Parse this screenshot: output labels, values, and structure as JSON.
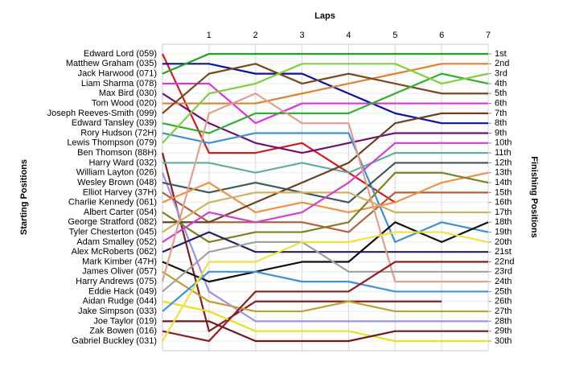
{
  "chart_data": {
    "type": "bump",
    "title": "Laps",
    "ylabel": "Starting Positions",
    "y2label": "Finishing Positions",
    "x": [
      0,
      1,
      2,
      3,
      4,
      5,
      6,
      7
    ],
    "xlim": [
      0,
      7
    ],
    "xticks": [
      1,
      2,
      3,
      4,
      5,
      6,
      7
    ],
    "ylim": [
      1,
      30
    ],
    "yticks": [
      {
        "value": 1,
        "label": "1st"
      },
      {
        "value": 2,
        "label": "2nd"
      },
      {
        "value": 3,
        "label": "3rd"
      },
      {
        "value": 4,
        "label": "4th"
      },
      {
        "value": 5,
        "label": "5th"
      },
      {
        "value": 6,
        "label": "6th"
      },
      {
        "value": 7,
        "label": "7th"
      },
      {
        "value": 8,
        "label": "8th"
      },
      {
        "value": 9,
        "label": "9th"
      },
      {
        "value": 10,
        "label": "10th"
      },
      {
        "value": 11,
        "label": "11th"
      },
      {
        "value": 12,
        "label": "12th"
      },
      {
        "value": 13,
        "label": "13th"
      },
      {
        "value": 14,
        "label": "14th"
      },
      {
        "value": 15,
        "label": "15th"
      },
      {
        "value": 16,
        "label": "16th"
      },
      {
        "value": 17,
        "label": "17th"
      },
      {
        "value": 18,
        "label": "18th"
      },
      {
        "value": 19,
        "label": "19th"
      },
      {
        "value": 20,
        "label": "20th"
      },
      {
        "value": 21,
        "label": "21st"
      },
      {
        "value": 22,
        "label": "22nd"
      },
      {
        "value": 23,
        "label": "23rd"
      },
      {
        "value": 24,
        "label": "24th"
      },
      {
        "value": 25,
        "label": "25th"
      },
      {
        "value": 26,
        "label": "26th"
      },
      {
        "value": 27,
        "label": "27th"
      },
      {
        "value": 28,
        "label": "28th"
      },
      {
        "value": 29,
        "label": "29th"
      },
      {
        "value": 30,
        "label": "30th"
      }
    ],
    "grid": true,
    "series": [
      {
        "name": "Edward Lord (059)",
        "color": "#cc2020",
        "values": [
          1,
          11,
          11,
          10,
          13,
          16,
          null,
          null
        ]
      },
      {
        "name": "Matthew Graham (035)",
        "color": "#1010a0",
        "values": [
          2,
          2,
          3,
          3,
          5,
          7,
          8,
          8
        ]
      },
      {
        "name": "Jack Harwood (071)",
        "color": "#20a020",
        "values": [
          3,
          1,
          1,
          1,
          1,
          1,
          1,
          1
        ]
      },
      {
        "name": "Liam Sharma (078)",
        "color": "#e030e0",
        "values": [
          4,
          4,
          8,
          6,
          6,
          6,
          6,
          6
        ]
      },
      {
        "name": "Max Bird (030)",
        "color": "#701070",
        "values": [
          5,
          8,
          10,
          11,
          10,
          9,
          9,
          9
        ]
      },
      {
        "name": "Tom Wood (020)",
        "color": "#e08030",
        "values": [
          6,
          6,
          6,
          5,
          4,
          3,
          2,
          2
        ]
      },
      {
        "name": "Joseph Reeves-Smith (099)",
        "color": "#7a4a20",
        "values": [
          7,
          3,
          2,
          4,
          3,
          4,
          5,
          5
        ]
      },
      {
        "name": "Edward Tansley (039)",
        "color": "#30b030",
        "values": [
          8,
          9,
          7,
          7,
          7,
          5,
          3,
          4
        ]
      },
      {
        "name": "Rory Hudson (72H)",
        "color": "#4090d0",
        "values": [
          9,
          10,
          9,
          9,
          9,
          20,
          18,
          19
        ]
      },
      {
        "name": "Lewis Thompson (079)",
        "color": "#80d040",
        "values": [
          10,
          5,
          4,
          2,
          2,
          2,
          4,
          3
        ]
      },
      {
        "name": "Ben Thomson (88H)",
        "color": "#802020",
        "values": [
          11,
          29,
          26,
          26,
          26,
          26,
          26,
          null
        ]
      },
      {
        "name": "Harry Ward (032)",
        "color": "#60b0a0",
        "values": [
          12,
          12,
          13,
          12,
          13,
          11,
          11,
          11
        ]
      },
      {
        "name": "William Layton (026)",
        "color": "#a090e0",
        "values": [
          13,
          25,
          28,
          28,
          28,
          28,
          28,
          28
        ]
      },
      {
        "name": "Wesley Brown (048)",
        "color": "#405858",
        "values": [
          14,
          15,
          14,
          15,
          16,
          12,
          12,
          12
        ]
      },
      {
        "name": "Elliot Harvey (37H)",
        "color": "#b06040",
        "values": [
          15,
          18,
          18,
          18,
          19,
          15,
          15,
          15
        ]
      },
      {
        "name": "Charlie Kennedy (061)",
        "color": "#f09040",
        "values": [
          16,
          14,
          17,
          16,
          17,
          16,
          14,
          13
        ]
      },
      {
        "name": "Albert Carter (054)",
        "color": "#808020",
        "values": [
          17,
          20,
          19,
          19,
          18,
          13,
          13,
          14
        ]
      },
      {
        "name": "George Stratford (082)",
        "color": "#6a4020",
        "values": [
          18,
          18,
          16,
          14,
          12,
          8,
          7,
          7
        ]
      },
      {
        "name": "Tyler Chesterton (045)",
        "color": "#d0b060",
        "values": [
          19,
          16,
          15,
          15,
          15,
          17,
          17,
          17
        ]
      },
      {
        "name": "Adam Smalley (052)",
        "color": "#d040d0",
        "values": [
          20,
          17,
          18,
          17,
          14,
          10,
          10,
          10
        ]
      },
      {
        "name": "Alex McRoberts (062)",
        "color": "#202060",
        "values": [
          21,
          19,
          21,
          21,
          21,
          21,
          21,
          21
        ]
      },
      {
        "name": "Mark Kimber (47H)",
        "color": "#101010",
        "values": [
          22,
          24,
          23,
          22,
          22,
          18,
          20,
          18
        ]
      },
      {
        "name": "James Oliver (057)",
        "color": "#c0a030",
        "values": [
          23,
          26,
          27,
          27,
          26,
          27,
          27,
          27
        ]
      },
      {
        "name": "Harry Andrews (075)",
        "color": "#e0a090",
        "values": [
          24,
          7,
          5,
          8,
          8,
          24,
          24,
          24
        ]
      },
      {
        "name": "Eddie Hack (049)",
        "color": "#a0a0a0",
        "values": [
          25,
          21,
          20,
          20,
          23,
          23,
          23,
          23
        ]
      },
      {
        "name": "Aidan Rudge (044)",
        "color": "#e8e020",
        "values": [
          26,
          27,
          29,
          29,
          29,
          30,
          30,
          30
        ]
      },
      {
        "name": "Jake Simpson (033)",
        "color": "#4090e0",
        "values": [
          27,
          23,
          23,
          24,
          24,
          25,
          25,
          25
        ]
      },
      {
        "name": "Joe Taylor (019)",
        "color": "#701818",
        "values": [
          28,
          28,
          30,
          30,
          30,
          29,
          29,
          29
        ]
      },
      {
        "name": "Zak Bowen (016)",
        "color": "#901c1c",
        "values": [
          29,
          30,
          25,
          25,
          25,
          22,
          22,
          22
        ]
      },
      {
        "name": "Gabriel Buckley (031)",
        "color": "#f0e040",
        "values": [
          30,
          22,
          22,
          20,
          20,
          19,
          19,
          20
        ]
      }
    ]
  }
}
